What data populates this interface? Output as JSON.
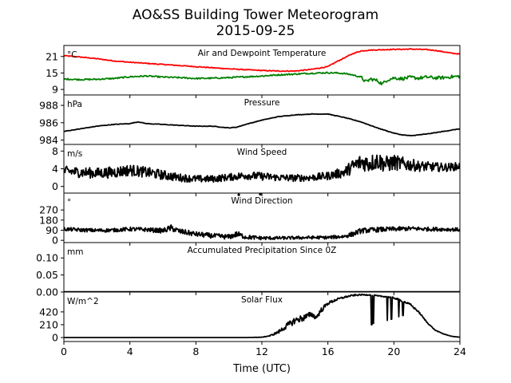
{
  "figure": {
    "title_line1": "AO&SS Building Tower Meteorogram",
    "title_line2": "2015-09-25",
    "xlabel": "Time (UTC)"
  },
  "chart_data": [
    {
      "type": "line",
      "title": "Air and Dewpoint Temperature",
      "unit": "°C",
      "ylim": [
        7,
        25
      ],
      "yticks": [
        9,
        15,
        21
      ],
      "xlim": [
        0,
        24
      ],
      "xticks": [
        0,
        4,
        8,
        12,
        16,
        20,
        24
      ],
      "series": [
        {
          "color": "#ff0000",
          "x": [
            0,
            1,
            2,
            3,
            4,
            5,
            6,
            7,
            8,
            9,
            10,
            11,
            12,
            13,
            14,
            15,
            16,
            16.5,
            17,
            17.5,
            18,
            18.5,
            19,
            19.5,
            20,
            20.5,
            21,
            21.5,
            22,
            22.5,
            23,
            23.5,
            24
          ],
          "y": [
            21.3,
            20.8,
            20.2,
            19.4,
            18.9,
            18.5,
            18.1,
            17.7,
            17.3,
            16.9,
            16.5,
            16.2,
            15.9,
            15.7,
            15.7,
            16.3,
            17.3,
            19.0,
            20.5,
            22.0,
            23.0,
            23.3,
            23.4,
            23.5,
            23.6,
            23.6,
            23.7,
            23.6,
            23.5,
            23.2,
            22.7,
            22.2,
            21.9
          ]
        },
        {
          "color": "#008000",
          "x": [
            0,
            1,
            2,
            3,
            4,
            5,
            6,
            7,
            8,
            9,
            10,
            11,
            12,
            13,
            14,
            15,
            16,
            16.5,
            17,
            17.5,
            18,
            18.3,
            18.6,
            19,
            19.3,
            19.6,
            20,
            20.5,
            21,
            21.5,
            22,
            22.5,
            23,
            23.5,
            24
          ],
          "y": [
            12.8,
            12.6,
            12.7,
            13.0,
            13.6,
            13.9,
            13.5,
            13.3,
            13.0,
            13.1,
            13.3,
            13.6,
            13.9,
            14.3,
            14.6,
            14.9,
            15.1,
            15.0,
            14.8,
            14.3,
            13.5,
            11.8,
            12.8,
            12.2,
            11.0,
            12.5,
            13.2,
            12.9,
            13.4,
            13.1,
            13.5,
            13.2,
            13.3,
            13.6,
            13.8
          ]
        }
      ]
    },
    {
      "type": "line",
      "title": "Pressure",
      "unit": "hPa",
      "ylim": [
        983.5,
        989.2
      ],
      "yticks": [
        984,
        986,
        988
      ],
      "xlim": [
        0,
        24
      ],
      "series": [
        {
          "color": "#000000",
          "x": [
            0,
            1,
            2,
            3,
            4,
            4.5,
            5,
            6,
            7,
            8,
            9,
            10,
            10.5,
            11,
            12,
            13,
            14,
            15,
            16,
            16.5,
            17,
            18,
            19,
            20,
            20.5,
            21,
            21.5,
            22,
            23,
            24
          ],
          "y": [
            985.0,
            985.3,
            985.6,
            985.8,
            985.9,
            986.1,
            985.9,
            985.8,
            985.7,
            985.6,
            985.6,
            985.4,
            985.5,
            985.8,
            986.3,
            986.7,
            986.9,
            987.0,
            987.0,
            986.8,
            986.6,
            986.1,
            985.4,
            984.8,
            984.6,
            984.5,
            984.6,
            984.7,
            985.0,
            985.3
          ]
        }
      ]
    },
    {
      "type": "line",
      "title": "Wind Speed",
      "unit": "m/s",
      "ylim": [
        -1.5,
        9.5
      ],
      "yticks": [
        0,
        4,
        8
      ],
      "xlim": [
        0,
        24
      ],
      "series": [
        {
          "color": "#000000",
          "x": [
            0,
            1,
            2,
            3,
            4,
            5,
            6,
            7,
            8,
            9,
            10,
            11,
            12,
            13,
            14,
            15,
            16,
            17,
            17.5,
            18,
            18.5,
            19,
            19.5,
            20,
            20.5,
            21,
            21.5,
            22,
            22.5,
            23,
            23.5,
            24
          ],
          "y": [
            3.5,
            3.2,
            3.0,
            3.2,
            3.7,
            3.2,
            2.6,
            2.0,
            1.7,
            1.7,
            2.1,
            2.5,
            2.3,
            2.0,
            1.9,
            2.0,
            2.4,
            3.2,
            4.5,
            5.5,
            5.2,
            5.8,
            5.0,
            5.4,
            5.1,
            4.9,
            4.6,
            4.5,
            4.4,
            4.3,
            4.4,
            4.6
          ],
          "noise": [
            1.1,
            1.2,
            1.2,
            1.3,
            1.3,
            1.2,
            1.1,
            0.9,
            0.8,
            0.8,
            0.8,
            0.9,
            0.9,
            0.8,
            0.8,
            0.8,
            0.9,
            1.2,
            1.6,
            1.9,
            2.0,
            2.0,
            1.9,
            1.8,
            1.6,
            1.4,
            1.2,
            1.1,
            1.0,
            1.0,
            0.9,
            0.9
          ]
        }
      ]
    },
    {
      "type": "line",
      "title": "Wind Direction",
      "unit": "°",
      "ylim": [
        -20,
        420
      ],
      "yticks": [
        0,
        90,
        180,
        270
      ],
      "xlim": [
        0,
        24
      ],
      "series": [
        {
          "color": "#000000",
          "x": [
            0,
            1,
            2,
            3,
            4,
            5,
            6,
            6.5,
            7,
            8,
            9,
            10,
            10.5,
            11,
            12,
            13,
            14,
            15,
            16,
            17,
            17.5,
            18,
            19,
            20,
            21,
            22,
            23,
            24
          ],
          "y": [
            100,
            92,
            88,
            90,
            100,
            95,
            85,
            110,
            80,
            55,
            40,
            30,
            55,
            30,
            20,
            20,
            22,
            25,
            25,
            35,
            55,
            85,
            95,
            100,
            105,
            100,
            98,
            95
          ],
          "noise": [
            16,
            16,
            16,
            16,
            18,
            18,
            22,
            28,
            24,
            22,
            22,
            22,
            26,
            20,
            16,
            14,
            14,
            14,
            14,
            16,
            22,
            22,
            22,
            20,
            18,
            18,
            16,
            16
          ]
        }
      ],
      "markers": [
        {
          "x": 10.6,
          "y": 405
        },
        {
          "x": 11.9,
          "y": 410
        }
      ]
    },
    {
      "type": "line",
      "title": "Accumulated Precipitation Since 0Z",
      "unit": "mm",
      "ylim": [
        0,
        0.145
      ],
      "yticks": [
        0.0,
        0.05,
        0.1
      ],
      "yticklabels": [
        "0.00",
        "0.05",
        "0.10"
      ],
      "xlim": [
        0,
        24
      ],
      "series": [
        {
          "color": "#000000",
          "x": [
            0,
            24
          ],
          "y": [
            0,
            0
          ]
        }
      ]
    },
    {
      "type": "line",
      "title": "Solar Flux",
      "unit": "W/m^2",
      "ylim": [
        -65,
        745
      ],
      "yticks": [
        0,
        210,
        420
      ],
      "xlim": [
        0,
        24
      ],
      "series": [
        {
          "color": "#000000",
          "x": [
            0,
            11,
            12,
            12.5,
            13,
            13.5,
            14,
            14.5,
            15,
            15.3,
            15.6,
            16,
            16.5,
            17,
            17.5,
            18,
            18.5,
            18.8,
            19,
            19.5,
            20,
            20.5,
            21,
            21.5,
            22,
            22.5,
            23,
            23.5,
            24
          ],
          "y": [
            0,
            0,
            5,
            30,
            90,
            190,
            280,
            320,
            380,
            330,
            450,
            560,
            620,
            660,
            690,
            700,
            700,
            690,
            680,
            670,
            650,
            600,
            540,
            420,
            250,
            120,
            60,
            20,
            5
          ],
          "noise": [
            0,
            0,
            2,
            8,
            25,
            45,
            55,
            55,
            45,
            40,
            40,
            25,
            20,
            15,
            12,
            10,
            10,
            10,
            10,
            10,
            12,
            15,
            15,
            12,
            8,
            5,
            3,
            2,
            1
          ]
        }
      ],
      "dips": [
        {
          "x": 18.65,
          "y": 210
        },
        {
          "x": 18.75,
          "y": 230
        },
        {
          "x": 19.6,
          "y": 280
        },
        {
          "x": 19.85,
          "y": 300
        },
        {
          "x": 20.3,
          "y": 340
        },
        {
          "x": 20.55,
          "y": 360
        }
      ]
    }
  ]
}
